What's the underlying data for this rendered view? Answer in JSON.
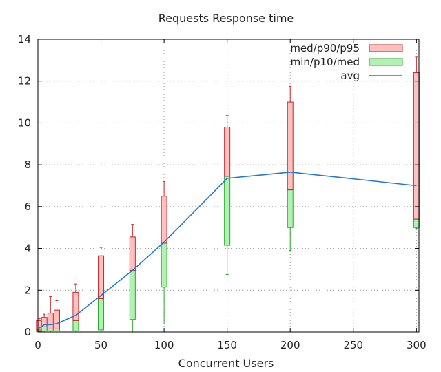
{
  "chart_data": {
    "type": "box",
    "title": "Requests Response time",
    "xlabel": "Concurrent Users",
    "ylabel": "",
    "xlim": [
      0,
      302
    ],
    "ylim": [
      0,
      14
    ],
    "xticks": [
      0,
      50,
      100,
      150,
      200,
      250,
      300
    ],
    "yticks": [
      0,
      2,
      4,
      6,
      8,
      10,
      12,
      14
    ],
    "grid": true,
    "legend_position": "top-right",
    "legend": [
      {
        "label": "med/p90/p95",
        "kind": "box-upper"
      },
      {
        "label": "min/p10/med",
        "kind": "box-lower"
      },
      {
        "label": "avg",
        "kind": "line"
      }
    ],
    "colors": {
      "upper_fill": "#ffc0c0",
      "upper_stroke": "#cc2222",
      "lower_fill": "#b3f0b3",
      "lower_stroke": "#22aa22",
      "avg_line": "#1f78d8",
      "grid": "#9a9a9a"
    },
    "boxes": [
      {
        "x": 1,
        "min": 0.0,
        "p10": 0.02,
        "med": 0.1,
        "p90": 0.55,
        "p95": 0.65
      },
      {
        "x": 5,
        "min": 0.0,
        "p10": 0.05,
        "med": 0.25,
        "p90": 0.7,
        "p95": 0.85
      },
      {
        "x": 10,
        "min": 0.0,
        "p10": 0.05,
        "med": 0.15,
        "p90": 0.9,
        "p95": 1.7
      },
      {
        "x": 15,
        "min": 0.0,
        "p10": 0.05,
        "med": 0.15,
        "p90": 1.05,
        "p95": 1.5
      },
      {
        "x": 30,
        "min": 0.0,
        "p10": 0.05,
        "med": 0.55,
        "p90": 1.9,
        "p95": 2.3
      },
      {
        "x": 50,
        "min": 0.0,
        "p10": 0.1,
        "med": 1.6,
        "p90": 3.65,
        "p95": 4.05
      },
      {
        "x": 75,
        "min": 0.0,
        "p10": 0.6,
        "med": 2.95,
        "p90": 4.55,
        "p95": 5.15
      },
      {
        "x": 100,
        "min": 0.38,
        "p10": 2.15,
        "med": 4.25,
        "p90": 6.5,
        "p95": 7.2
      },
      {
        "x": 150,
        "min": 2.75,
        "p10": 4.15,
        "med": 7.45,
        "p90": 9.8,
        "p95": 10.35
      },
      {
        "x": 200,
        "min": 3.9,
        "p10": 5.0,
        "med": 6.8,
        "p90": 11.0,
        "p95": 11.75
      },
      {
        "x": 300,
        "min": 4.95,
        "p10": 5.0,
        "med": 5.4,
        "p90": 12.4,
        "p95": 13.15
      }
    ],
    "avg": {
      "x": [
        1,
        5,
        10,
        15,
        30,
        50,
        75,
        100,
        150,
        200,
        300
      ],
      "y": [
        0.2,
        0.35,
        0.35,
        0.4,
        0.8,
        1.75,
        2.95,
        4.3,
        7.35,
        7.65,
        7.0
      ]
    }
  }
}
